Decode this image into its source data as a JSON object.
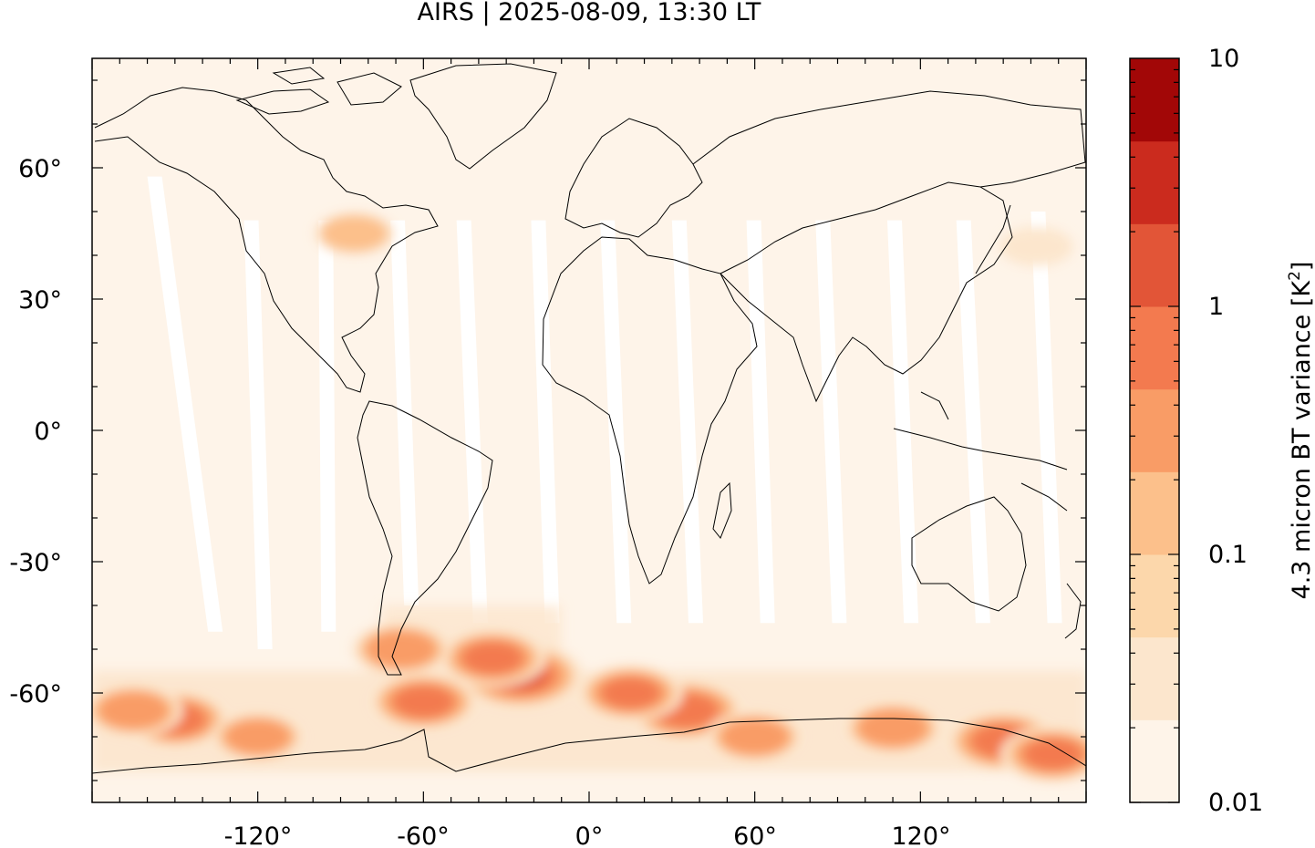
{
  "title": "AIRS | 2025-08-09, 13:30 LT",
  "map": {
    "projection": "equirectangular",
    "lon_range": [
      -180,
      180
    ],
    "lat_range": [
      -85,
      85
    ],
    "x_ticks": [
      "-120°",
      "-60°",
      "0°",
      "60°",
      "120°"
    ],
    "x_tick_values": [
      -120,
      -60,
      0,
      60,
      120
    ],
    "y_ticks": [
      "60°",
      "30°",
      "0°",
      "-30°",
      "-60°"
    ],
    "y_tick_values": [
      60,
      30,
      0,
      -30,
      -60
    ],
    "background_color": "#fef4e9",
    "coastline_color": "#000000",
    "orbit_gaps": [
      {
        "lon_n": -160,
        "lon_s": -138,
        "lat_top": 58,
        "lat_bot": -46
      },
      {
        "lon_n": -125,
        "lon_s": -120,
        "lat_top": 48,
        "lat_bot": -50
      },
      {
        "lon_n": -98,
        "lon_s": -97,
        "lat_top": 48,
        "lat_bot": -46
      },
      {
        "lon_n": -72,
        "lon_s": -67,
        "lat_top": 48,
        "lat_bot": -40
      },
      {
        "lon_n": -48,
        "lon_s": -42,
        "lat_top": 48,
        "lat_bot": -44
      },
      {
        "lon_n": -21,
        "lon_s": -16,
        "lat_top": 48,
        "lat_bot": -44
      },
      {
        "lon_n": 4,
        "lon_s": 10,
        "lat_top": 48,
        "lat_bot": -44
      },
      {
        "lon_n": 30,
        "lon_s": 36,
        "lat_top": 48,
        "lat_bot": -44
      },
      {
        "lon_n": 57,
        "lon_s": 62,
        "lat_top": 48,
        "lat_bot": -44
      },
      {
        "lon_n": 82,
        "lon_s": 88,
        "lat_top": 48,
        "lat_bot": -44
      },
      {
        "lon_n": 108,
        "lon_s": 114,
        "lat_top": 48,
        "lat_bot": -44
      },
      {
        "lon_n": 133,
        "lon_s": 140,
        "lat_top": 48,
        "lat_bot": -44
      },
      {
        "lon_n": 160,
        "lon_s": 166,
        "lat_top": 50,
        "lat_bot": -44
      }
    ],
    "hotspots": [
      {
        "lon": -25,
        "lat": -56,
        "value": 1.6
      },
      {
        "lon": -35,
        "lat": -52,
        "value": 0.6
      },
      {
        "lon": -60,
        "lat": -62,
        "value": 0.6
      },
      {
        "lon": -68,
        "lat": -50,
        "value": 0.35
      },
      {
        "lon": 35,
        "lat": -64,
        "value": 0.9
      },
      {
        "lon": 15,
        "lat": -60,
        "value": 0.5
      },
      {
        "lon": -150,
        "lat": -66,
        "value": 0.6
      },
      {
        "lon": -165,
        "lat": -64,
        "value": 0.35
      },
      {
        "lon": 150,
        "lat": -71,
        "value": 0.8
      },
      {
        "lon": 168,
        "lat": -74,
        "value": 0.5
      },
      {
        "lon": 110,
        "lat": -68,
        "value": 0.35
      },
      {
        "lon": 60,
        "lat": -70,
        "value": 0.3
      },
      {
        "lon": -120,
        "lat": -70,
        "value": 0.25
      },
      {
        "lon": -85,
        "lat": 45,
        "value": 0.12
      },
      {
        "lon": 162,
        "lat": 42,
        "value": 0.08
      }
    ]
  },
  "colorbar": {
    "label": "4.3 micron BT variance [K",
    "label_sup": "2",
    "label_end": "]",
    "tick_labels": [
      "10",
      "1",
      "0.1",
      "0.01"
    ],
    "tick_values": [
      10,
      1,
      0.1,
      0.01
    ],
    "scale": "log",
    "colors": [
      "#fef4e9",
      "#fce6cd",
      "#fcd7ab",
      "#fcc08b",
      "#f99c66",
      "#f37a4f",
      "#e25537",
      "#cb2b1e",
      "#a20707"
    ]
  }
}
